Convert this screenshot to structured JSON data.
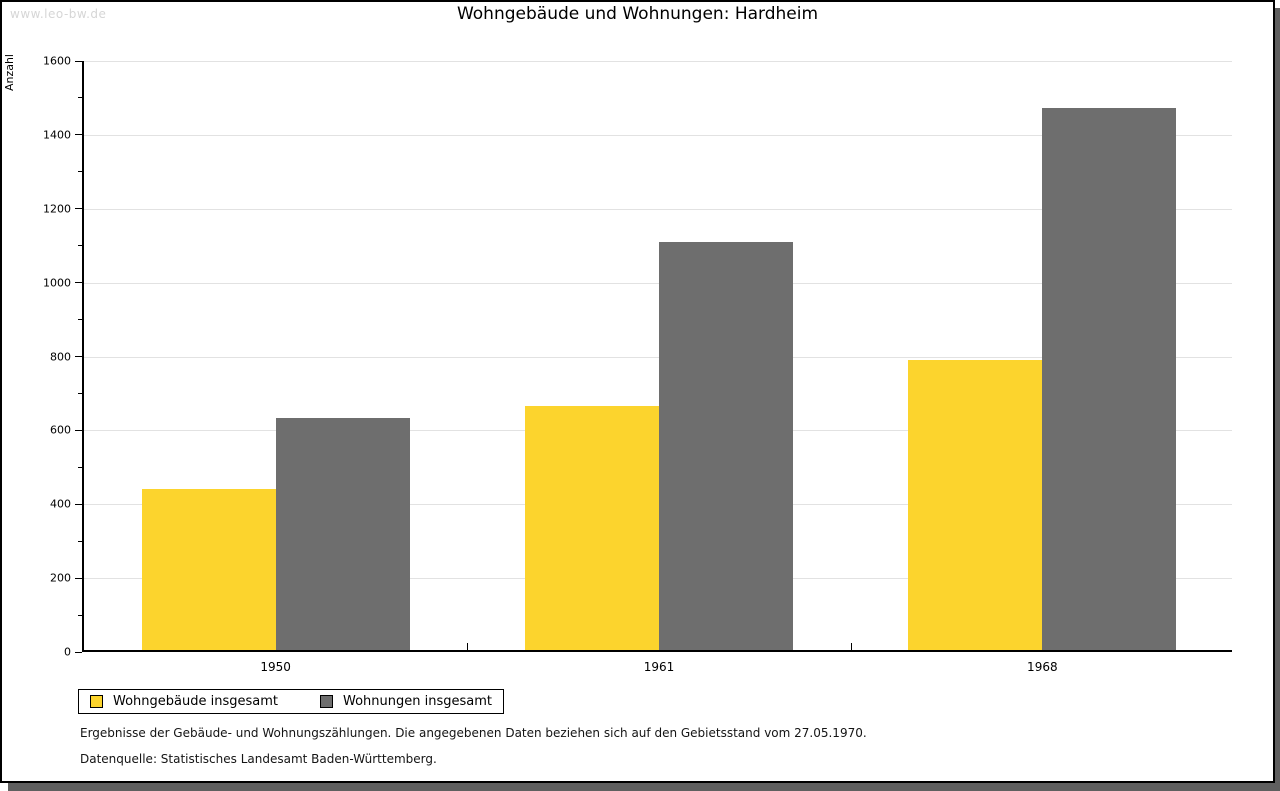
{
  "watermark": "www.leo-bw.de",
  "title": "Wohngebäude und Wohnungen: Hardheim",
  "chart_data": {
    "type": "bar",
    "title": "Wohngebäude und Wohnungen: Hardheim",
    "xlabel": "",
    "ylabel": "Anzahl",
    "categories": [
      "1950",
      "1961",
      "1968"
    ],
    "series": [
      {
        "name": "Wohngebäude insgesamt",
        "color": "#FCD42D",
        "values": [
          437,
          660,
          785
        ]
      },
      {
        "name": "Wohnungen insgesamt",
        "color": "#6E6E6E",
        "values": [
          628,
          1105,
          1467
        ]
      }
    ],
    "ylim": [
      0,
      1600
    ],
    "y_major_step": 200,
    "y_minor_step": 100,
    "grid": true,
    "legend_position": "bottom-left"
  },
  "footnotes": {
    "line1": "Ergebnisse der Gebäude- und Wohnungszählungen. Die angegebenen Daten beziehen sich auf den Gebietsstand vom 27.05.1970.",
    "line2": "Datenquelle: Statistisches Landesamt Baden-Württemberg."
  }
}
